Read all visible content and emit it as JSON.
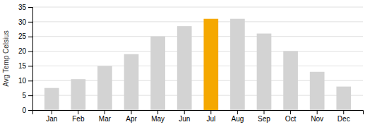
{
  "chart_data": {
    "type": "bar",
    "ylabel": "Avg Temp Celsius",
    "categories": [
      "Jan",
      "Feb",
      "Mar",
      "Apr",
      "May",
      "Jun",
      "Jul",
      "Aug",
      "Sep",
      "Oct",
      "Nov",
      "Dec"
    ],
    "values": [
      7.5,
      10.5,
      15,
      19,
      25,
      28.5,
      31,
      31,
      26,
      20,
      13,
      8
    ],
    "colors": [
      "#d3d3d3",
      "#d3d3d3",
      "#d3d3d3",
      "#d3d3d3",
      "#d3d3d3",
      "#d3d3d3",
      "#f5a800",
      "#d3d3d3",
      "#d3d3d3",
      "#d3d3d3",
      "#d3d3d3",
      "#d3d3d3"
    ],
    "ylim": [
      0,
      35
    ],
    "yticks": [
      0,
      5,
      10,
      15,
      20,
      25,
      30,
      35
    ],
    "grid": true
  }
}
